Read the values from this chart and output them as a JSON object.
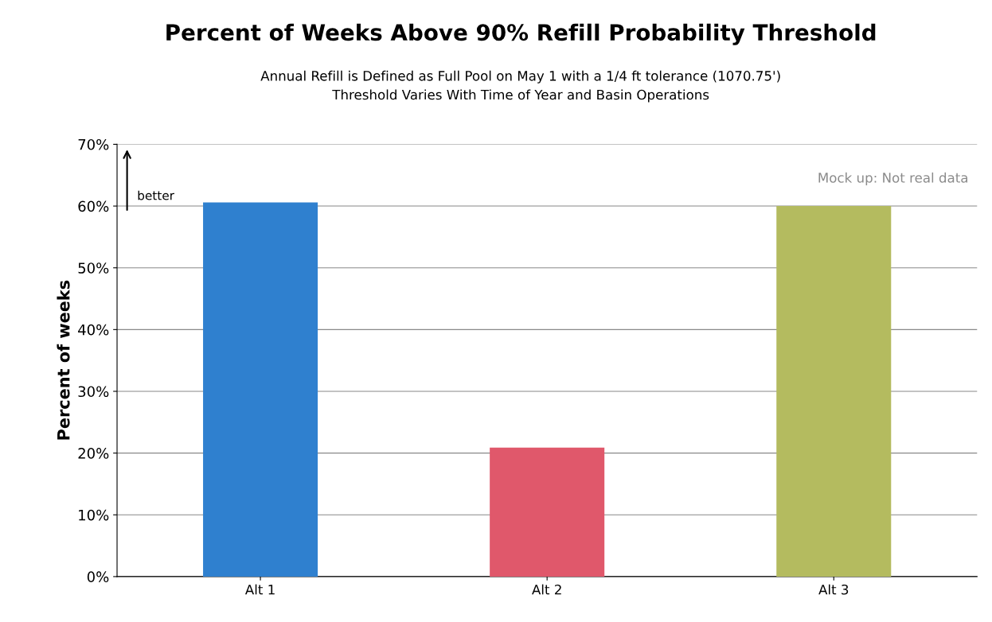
{
  "chart_data": {
    "type": "bar",
    "title": "Percent of Weeks Above 90% Refill Probability Threshold",
    "subtitle": "Annual Refill is Defined as Full Pool on May 1 with a 1/4 ft tolerance (1070.75')\nThreshold Varies With Time of Year and Basin Operations",
    "ylabel": "Percent of weeks",
    "categories": [
      "Alt 1",
      "Alt 2",
      "Alt 3"
    ],
    "values": [
      60.6,
      20.9,
      60.0
    ],
    "colors": [
      "#2f80cf",
      "#e0586b",
      "#b4bb5f"
    ],
    "ylim": [
      0,
      70
    ],
    "yticks": [
      {
        "value": 0,
        "label": "0%"
      },
      {
        "value": 10,
        "label": "10%"
      },
      {
        "value": 20,
        "label": "20%"
      },
      {
        "value": 30,
        "label": "30%"
      },
      {
        "value": 40,
        "label": "40%"
      },
      {
        "value": 50,
        "label": "50%"
      },
      {
        "value": 60,
        "label": "60%"
      },
      {
        "value": 70,
        "label": "70%"
      }
    ],
    "grid": "y",
    "legend": false,
    "annotations": [
      "better",
      "Mock up: Not real data"
    ]
  }
}
